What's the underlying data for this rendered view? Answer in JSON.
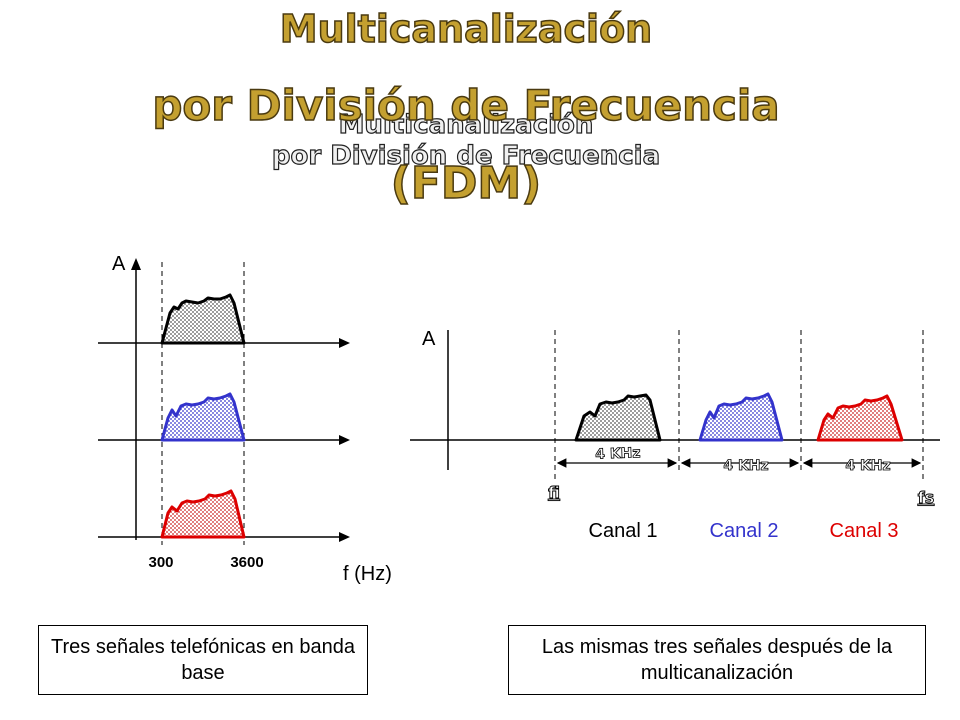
{
  "title": {
    "line1": "Multicanalización",
    "line2": "por División de Frecuencia",
    "line3": "(FDM)"
  },
  "left_diagram": {
    "axis_y_label": "A",
    "axis_x_label": "f (Hz)",
    "tick_low": "300",
    "tick_high": "3600",
    "signal_colors": [
      "#000000",
      "#3333cc",
      "#dd0000"
    ]
  },
  "right_diagram": {
    "axis_y_label": "A",
    "bandwidth_labels": [
      "4 KHz",
      "4 KHz",
      "4 KHz"
    ],
    "fi_label": "fi",
    "fs_label": "fs",
    "channels": [
      {
        "label": "Canal 1",
        "color": "#000000"
      },
      {
        "label": "Canal 2",
        "color": "#3333cc"
      },
      {
        "label": "Canal 3",
        "color": "#dd0000"
      }
    ]
  },
  "captions": {
    "left": "Tres señales telefónicas en banda base",
    "right": "Las mismas tres señales después de la multicanalización"
  }
}
